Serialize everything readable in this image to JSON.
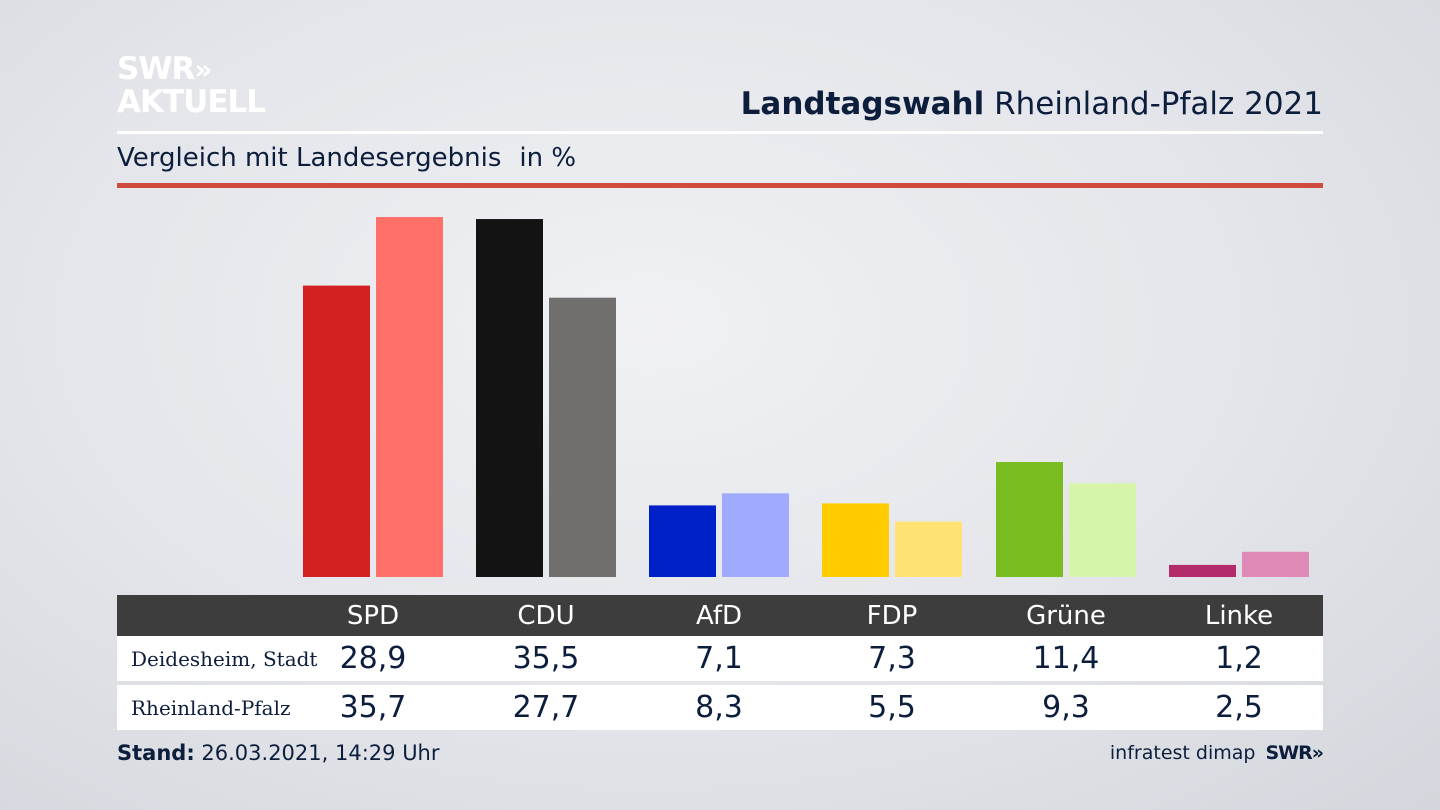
{
  "logo": {
    "line1": "SWR",
    "arrows": "»",
    "line2": "AKTUELL"
  },
  "header": {
    "title_bold": "Landtagswahl",
    "title_rest": "Rheinland-Pfalz 2021",
    "subtitle": "Vergleich mit Landesergebnis",
    "unit": "in %"
  },
  "chart_data": {
    "type": "bar",
    "categories": [
      "SPD",
      "CDU",
      "AfD",
      "FDP",
      "Grüne",
      "Linke"
    ],
    "series": [
      {
        "name": "Deidesheim, Stadt",
        "values": [
          28.9,
          35.5,
          7.1,
          7.3,
          11.4,
          1.2
        ]
      },
      {
        "name": "Rheinland-Pfalz",
        "values": [
          35.7,
          27.7,
          8.3,
          5.5,
          9.3,
          2.5
        ]
      }
    ],
    "value_labels": {
      "Deidesheim, Stadt": [
        "28,9",
        "35,5",
        "7,1",
        "7,3",
        "11,4",
        "1,2"
      ],
      "Rheinland-Pfalz": [
        "35,7",
        "27,7",
        "8,3",
        "5,5",
        "9,3",
        "2,5"
      ]
    },
    "colors": {
      "primary": [
        "#d42020",
        "#131313",
        "#0020c8",
        "#ffcc00",
        "#78bc1f",
        "#b42b6c"
      ],
      "secondary": [
        "#ff7068",
        "#706f6d",
        "#9fabff",
        "#ffe271",
        "#d6f5ab",
        "#e08ab8"
      ]
    },
    "ylim": [
      0,
      36
    ],
    "grid": false,
    "legend": "table-below"
  },
  "footer": {
    "stand_label": "Stand:",
    "stand_value": "26.03.2021, 14:29 Uhr",
    "source": "infratest dimap",
    "brand": "SWR»"
  }
}
